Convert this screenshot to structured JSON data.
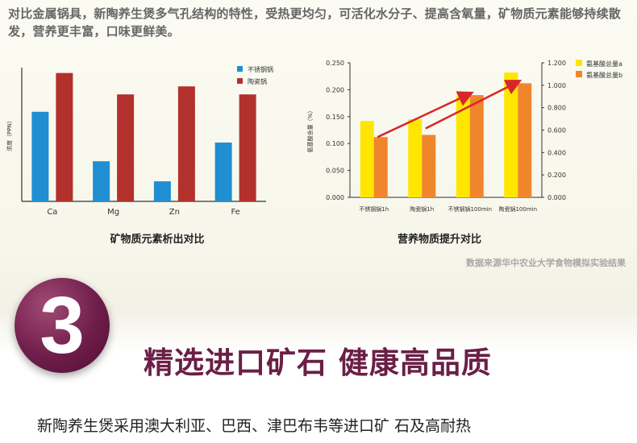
{
  "intro_text": "对比金属锅具，新陶养生煲多气孔结构的特性，受热更均匀，可活化水分子、提高含氧量，矿物质元素能够持续散发，营养更丰富，口味更鲜美。",
  "chart_data": [
    {
      "type": "bar",
      "title": "矿物质元素析出对比",
      "ylabel": "浓度（PPN）",
      "categories": [
        "Ca",
        "Mg",
        "Zn",
        "Fe"
      ],
      "ylim": [
        0,
        1
      ],
      "grid": false,
      "legend_position": "top-right",
      "series": [
        {
          "name": "不锈钢锅",
          "color": "#1f8fd1",
          "values": [
            0.67,
            0.3,
            0.15,
            0.44
          ]
        },
        {
          "name": "陶瓷锅",
          "color": "#b3312d",
          "values": [
            0.96,
            0.8,
            0.86,
            0.8
          ]
        }
      ]
    },
    {
      "type": "bar",
      "title": "营养物质提升对比",
      "ylabel": "氨基酸含量（%）",
      "categories": [
        "不锈钢锅1h",
        "陶瓷锅1h",
        "不锈钢锅100min",
        "陶瓷锅100min"
      ],
      "ylim": [
        0,
        0.25
      ],
      "ytick_labels": [
        "0.000",
        "0.050",
        "0.100",
        "0.150",
        "0.200",
        "0.250"
      ],
      "y2lim": [
        0,
        1.2
      ],
      "y2tick_labels": [
        "0.000",
        "0.200",
        "0.400",
        "0.600",
        "0.800",
        "1.000",
        "1.200"
      ],
      "grid": false,
      "legend_position": "top-right",
      "series": [
        {
          "name": "氨基酸总量a",
          "color": "#ffe600",
          "values": [
            0.142,
            0.145,
            0.188,
            0.232
          ]
        },
        {
          "name": "氨基酸总量b",
          "color": "#f0862c",
          "values": [
            0.112,
            0.116,
            0.19,
            0.212
          ]
        }
      ]
    }
  ],
  "source_note": "数据来源华中农业大学食物模拟实验结果",
  "section": {
    "number": "3",
    "title": "精选进口矿石 健康高品质"
  },
  "body_text": "新陶养生煲采用澳大利亚、巴西、津巴布韦等进口矿  石及高耐热",
  "colors": {
    "accent": "#6b1f46",
    "stainless": "#1f8fd1",
    "ceramic": "#b3312d",
    "amino_a": "#ffe600",
    "amino_b": "#f0862c",
    "arrow": "#d8262a"
  }
}
